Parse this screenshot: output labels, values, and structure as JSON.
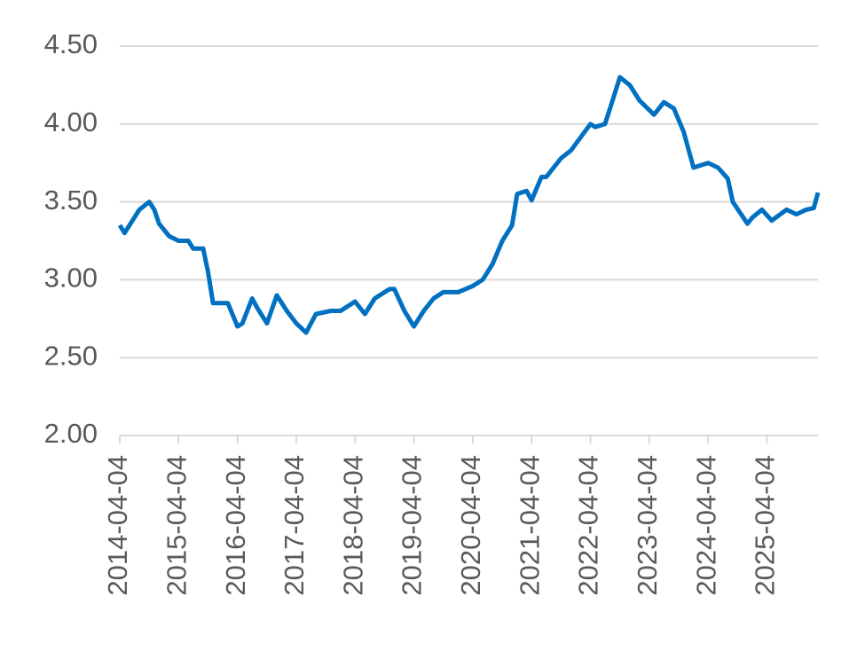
{
  "chart_data": {
    "type": "line",
    "x": [
      "2014-04-04",
      "2014-05-04",
      "2014-07-04",
      "2014-08-04",
      "2014-10-04",
      "2014-11-04",
      "2014-12-04",
      "2015-02-04",
      "2015-04-04",
      "2015-06-04",
      "2015-07-04",
      "2015-09-04",
      "2015-10-04",
      "2015-11-04",
      "2016-02-04",
      "2016-04-04",
      "2016-05-04",
      "2016-07-04",
      "2016-08-04",
      "2016-10-04",
      "2016-12-04",
      "2017-02-04",
      "2017-04-04",
      "2017-06-04",
      "2017-08-04",
      "2017-11-04",
      "2018-01-04",
      "2018-04-04",
      "2018-06-04",
      "2018-08-04",
      "2018-11-04",
      "2018-12-04",
      "2019-02-04",
      "2019-04-04",
      "2019-06-04",
      "2019-08-04",
      "2019-10-04",
      "2020-01-04",
      "2020-04-04",
      "2020-06-04",
      "2020-08-04",
      "2020-10-04",
      "2020-12-04",
      "2021-01-04",
      "2021-03-04",
      "2021-04-04",
      "2021-06-04",
      "2021-07-04",
      "2021-10-04",
      "2021-12-04",
      "2022-04-04",
      "2022-05-04",
      "2022-07-04",
      "2022-08-04",
      "2022-10-04",
      "2022-12-04",
      "2023-02-04",
      "2023-05-04",
      "2023-07-04",
      "2023-09-04",
      "2023-11-04",
      "2024-01-04",
      "2024-04-04",
      "2024-06-04",
      "2024-08-04",
      "2024-09-04",
      "2024-12-04",
      "2025-01-04",
      "2025-03-04",
      "2025-05-04",
      "2025-08-04",
      "2025-10-04",
      "2025-12-04",
      "2026-01-20",
      "2026-02-15"
    ],
    "series": [
      {
        "color": "#0070c0",
        "values": [
          3.35,
          3.3,
          3.4,
          3.45,
          3.5,
          3.45,
          3.36,
          3.28,
          3.25,
          3.25,
          3.2,
          3.2,
          3.05,
          2.85,
          2.85,
          2.7,
          2.72,
          2.88,
          2.82,
          2.72,
          2.9,
          2.8,
          2.72,
          2.66,
          2.78,
          2.8,
          2.8,
          2.86,
          2.78,
          2.88,
          2.94,
          2.94,
          2.8,
          2.7,
          2.8,
          2.88,
          2.92,
          2.92,
          2.96,
          3.0,
          3.1,
          3.25,
          3.35,
          3.55,
          3.57,
          3.51,
          3.66,
          3.66,
          3.78,
          3.83,
          4.0,
          3.98,
          4.0,
          4.1,
          4.3,
          4.25,
          4.15,
          4.06,
          4.14,
          4.1,
          3.95,
          3.72,
          3.75,
          3.72,
          3.65,
          3.5,
          3.36,
          3.4,
          3.45,
          3.38,
          3.45,
          3.42,
          3.45,
          3.46,
          3.56
        ]
      }
    ],
    "xlim": [
      "2014-04-04",
      "2026-02-15"
    ],
    "xticks": [
      "2014-04-04",
      "2015-04-04",
      "2016-04-04",
      "2017-04-04",
      "2018-04-04",
      "2019-04-04",
      "2020-04-04",
      "2021-04-04",
      "2022-04-04",
      "2023-04-04",
      "2024-04-04",
      "2025-04-04"
    ],
    "ylim": [
      2,
      4.5
    ],
    "yticks": [
      {
        "value": 2,
        "label": "2.00"
      },
      {
        "value": 2.5,
        "label": "2.50"
      },
      {
        "value": 3,
        "label": "3.00"
      },
      {
        "value": 3.5,
        "label": "3.50"
      },
      {
        "value": 4,
        "label": "4.00"
      },
      {
        "value": 4.5,
        "label": "4.50"
      }
    ],
    "grid": true
  }
}
